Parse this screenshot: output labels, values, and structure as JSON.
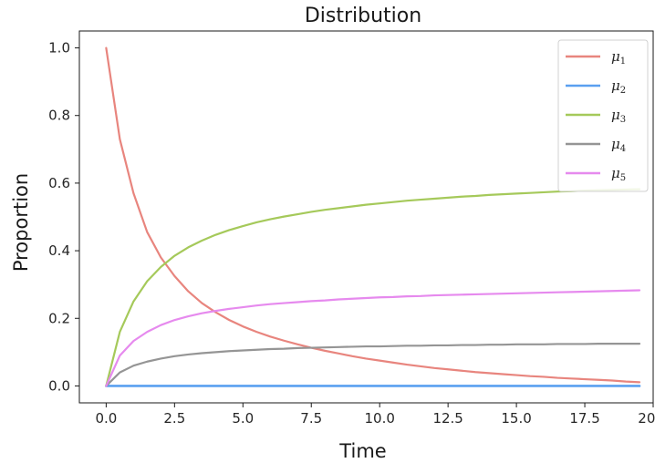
{
  "chart_data": {
    "type": "line",
    "title": "Distribution",
    "xlabel": "Time",
    "ylabel": "Proportion",
    "xlim": [
      -0.98,
      20.0
    ],
    "ylim": [
      -0.05,
      1.05
    ],
    "xticks": [
      0.0,
      2.5,
      5.0,
      7.5,
      10.0,
      12.5,
      15.0,
      17.5,
      20.0
    ],
    "xtick_labels": [
      "0.0",
      "2.5",
      "5.0",
      "7.5",
      "10.0",
      "12.5",
      "15.0",
      "17.5",
      "20.0"
    ],
    "yticks": [
      0.0,
      0.2,
      0.4,
      0.6,
      0.8,
      1.0
    ],
    "ytick_labels": [
      "0.0",
      "0.2",
      "0.4",
      "0.6",
      "0.8",
      "1.0"
    ],
    "grid": false,
    "legend_position": "top-right",
    "x": [
      0,
      0.5,
      1,
      1.5,
      2,
      2.5,
      3,
      3.5,
      4,
      4.5,
      5,
      5.5,
      6,
      6.5,
      7,
      7.5,
      8,
      8.5,
      9,
      9.5,
      10,
      10.5,
      11,
      11.5,
      12,
      12.5,
      13,
      13.5,
      14,
      14.5,
      15,
      15.5,
      16,
      16.5,
      17,
      17.5,
      18,
      18.5,
      19,
      19.5
    ],
    "series": [
      {
        "name": "μ₁",
        "label_base": "μ",
        "label_sub": "1",
        "color": "#e8857e",
        "values": [
          1.0,
          0.73,
          0.57,
          0.455,
          0.38,
          0.325,
          0.28,
          0.245,
          0.218,
          0.195,
          0.176,
          0.16,
          0.146,
          0.134,
          0.123,
          0.113,
          0.104,
          0.096,
          0.088,
          0.081,
          0.075,
          0.069,
          0.063,
          0.058,
          0.053,
          0.049,
          0.045,
          0.041,
          0.038,
          0.035,
          0.032,
          0.029,
          0.027,
          0.024,
          0.022,
          0.02,
          0.018,
          0.016,
          0.013,
          0.011
        ]
      },
      {
        "name": "μ₂",
        "label_base": "μ",
        "label_sub": "2",
        "color": "#5aa0f0",
        "values": [
          0,
          0,
          0,
          0,
          0,
          0,
          0,
          0,
          0,
          0,
          0,
          0,
          0,
          0,
          0,
          0,
          0,
          0,
          0,
          0,
          0,
          0,
          0,
          0,
          0,
          0,
          0,
          0,
          0,
          0,
          0,
          0,
          0,
          0,
          0,
          0,
          0,
          0,
          0,
          0
        ]
      },
      {
        "name": "μ₃",
        "label_base": "μ",
        "label_sub": "3",
        "color": "#a5c95a",
        "values": [
          0.0,
          0.16,
          0.25,
          0.31,
          0.352,
          0.385,
          0.41,
          0.43,
          0.447,
          0.461,
          0.473,
          0.484,
          0.493,
          0.501,
          0.508,
          0.515,
          0.521,
          0.526,
          0.531,
          0.536,
          0.54,
          0.544,
          0.548,
          0.551,
          0.554,
          0.557,
          0.56,
          0.562,
          0.565,
          0.567,
          0.569,
          0.571,
          0.573,
          0.575,
          0.576,
          0.578,
          0.579,
          0.58,
          0.581,
          0.582
        ]
      },
      {
        "name": "μ₄",
        "label_base": "μ",
        "label_sub": "4",
        "color": "#959595",
        "values": [
          0.0,
          0.04,
          0.06,
          0.072,
          0.081,
          0.088,
          0.093,
          0.097,
          0.1,
          0.103,
          0.105,
          0.107,
          0.109,
          0.11,
          0.112,
          0.113,
          0.114,
          0.115,
          0.116,
          0.117,
          0.117,
          0.118,
          0.119,
          0.119,
          0.12,
          0.12,
          0.121,
          0.121,
          0.122,
          0.122,
          0.123,
          0.123,
          0.123,
          0.124,
          0.124,
          0.124,
          0.125,
          0.125,
          0.125,
          0.125
        ]
      },
      {
        "name": "μ₅",
        "label_base": "μ",
        "label_sub": "5",
        "color": "#e68aee",
        "values": [
          0.0,
          0.09,
          0.133,
          0.16,
          0.18,
          0.195,
          0.206,
          0.215,
          0.222,
          0.228,
          0.233,
          0.238,
          0.242,
          0.245,
          0.248,
          0.251,
          0.253,
          0.256,
          0.258,
          0.26,
          0.262,
          0.263,
          0.265,
          0.266,
          0.268,
          0.269,
          0.27,
          0.271,
          0.272,
          0.273,
          0.274,
          0.275,
          0.276,
          0.277,
          0.278,
          0.279,
          0.28,
          0.281,
          0.282,
          0.283
        ]
      }
    ]
  }
}
